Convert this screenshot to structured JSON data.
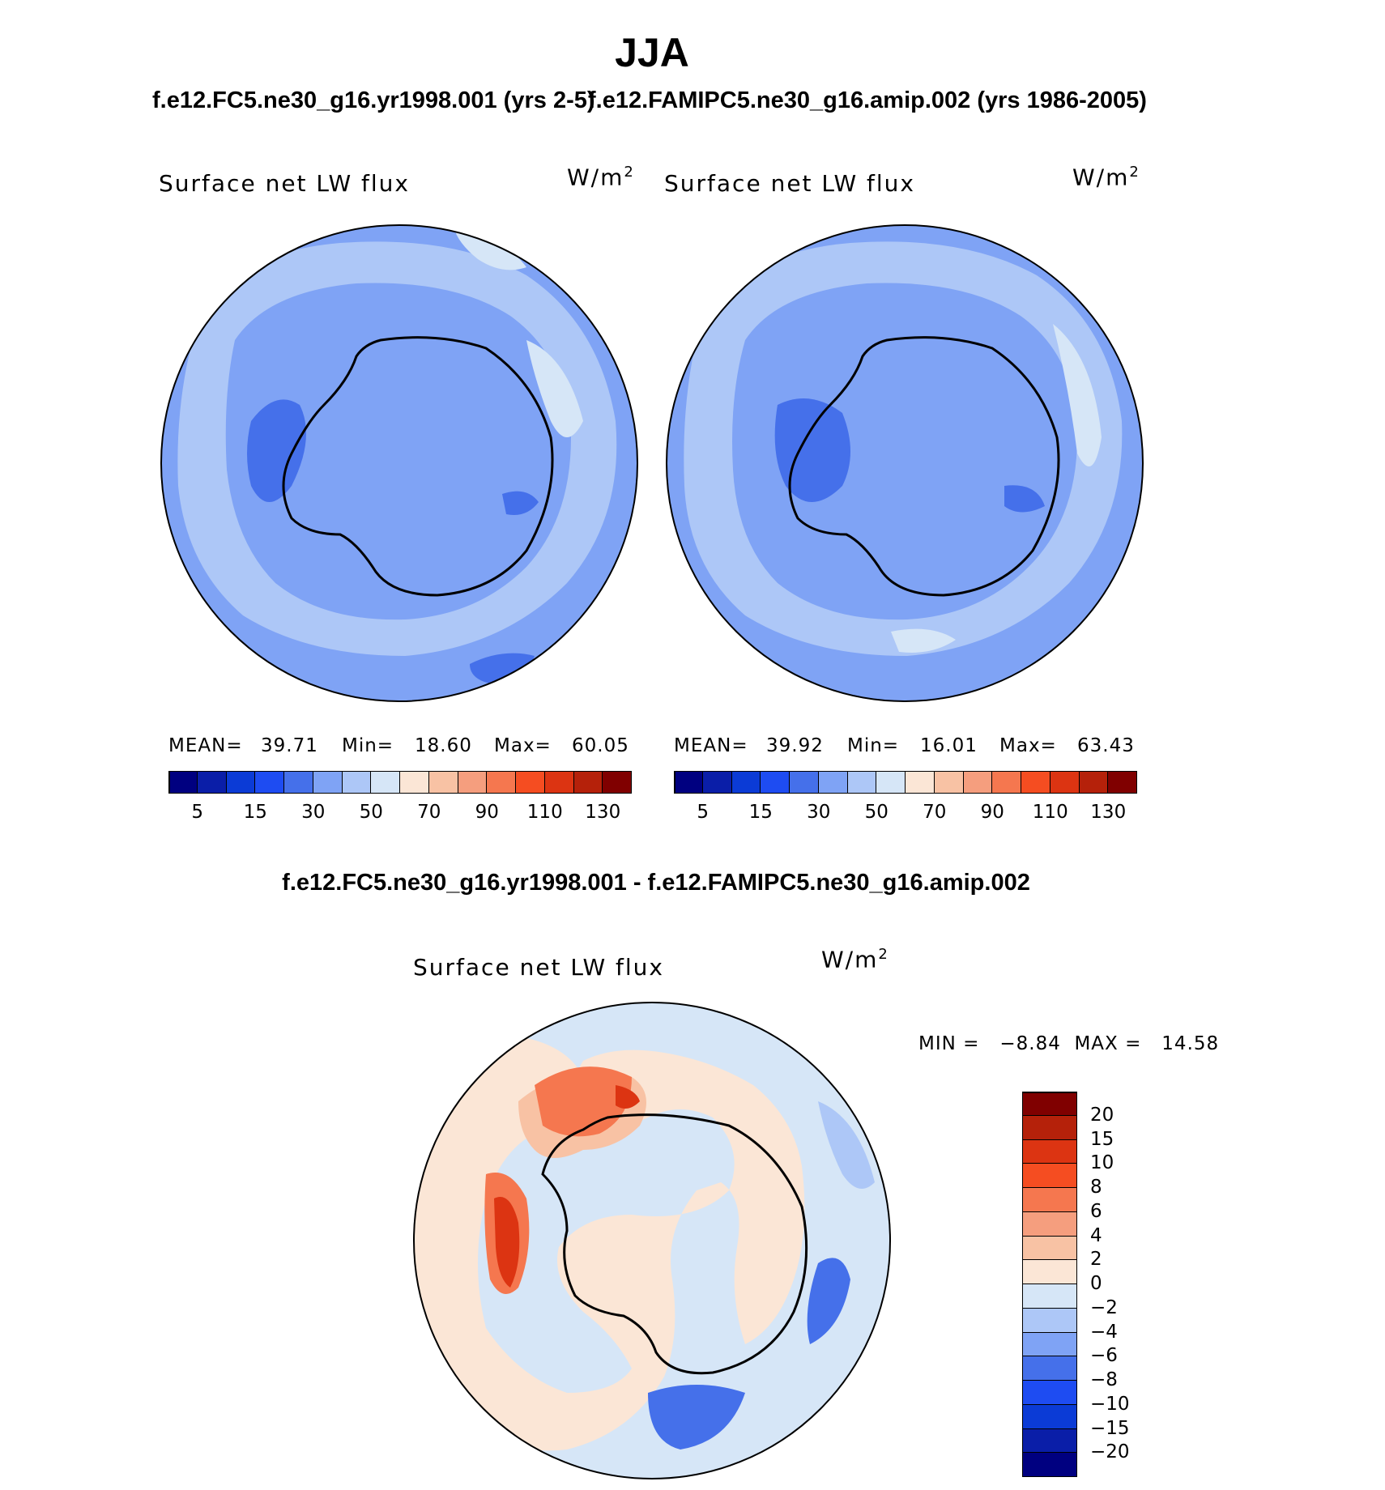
{
  "title": "JJA",
  "panel_left": {
    "case": "f.e12.FC5.ne30_g16.yr1998.001 (yrs 2-5)",
    "label": "Surface net LW flux",
    "units": "W/m",
    "units_exp": "2",
    "stats": {
      "mean_label": "MEAN=",
      "mean": "39.71",
      "min_label": "Min=",
      "min": "18.60",
      "max_label": "Max=",
      "max": "60.05"
    }
  },
  "panel_right": {
    "case": "f.e12.FAMIPC5.ne30_g16.amip.002 (yrs 1986-2005)",
    "label": "Surface net LW flux",
    "units": "W/m",
    "units_exp": "2",
    "stats": {
      "mean_label": "MEAN=",
      "mean": "39.92",
      "min_label": "Min=",
      "min": "16.01",
      "max_label": "Max=",
      "max": "63.43"
    }
  },
  "colorbar_top": {
    "colors": [
      "#000080",
      "#0a1ea8",
      "#0b3bd6",
      "#1e4cf2",
      "#4570ea",
      "#7fa3f5",
      "#adc7f7",
      "#d6e6f7",
      "#fbe6d6",
      "#f8c2a4",
      "#f59e7e",
      "#f5774f",
      "#f54d21",
      "#dc3412",
      "#b5210a",
      "#800000"
    ],
    "tick_labels": [
      "5",
      "15",
      "30",
      "50",
      "70",
      "90",
      "110",
      "130"
    ]
  },
  "diff": {
    "title": "f.e12.FC5.ne30_g16.yr1998.001 - f.e12.FAMIPC5.ne30_g16.amip.002",
    "label": "Surface net LW flux",
    "units": "W/m",
    "units_exp": "2",
    "stats": "MIN =   −8.84  MAX =   14.58"
  },
  "colorbar_diff": {
    "colors": [
      "#800000",
      "#b5210a",
      "#dc3412",
      "#f54d21",
      "#f5774f",
      "#f59e7e",
      "#f8c2a4",
      "#fbe6d6",
      "#d6e6f7",
      "#adc7f7",
      "#7fa3f5",
      "#4570ea",
      "#1e4cf2",
      "#0b3bd6",
      "#0a1ea8",
      "#000080"
    ],
    "tick_labels": [
      "20",
      "15",
      "10",
      "8",
      "6",
      "4",
      "2",
      "0",
      "−2",
      "−4",
      "−6",
      "−8",
      "−10",
      "−15",
      "−20"
    ]
  }
}
